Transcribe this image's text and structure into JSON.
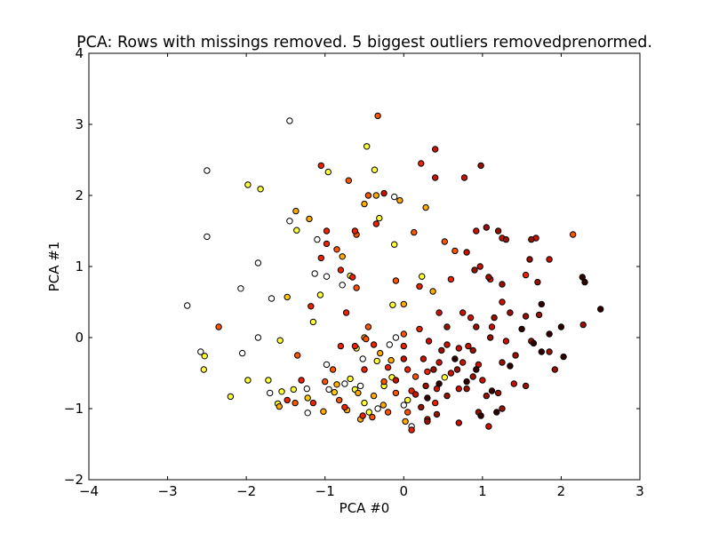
{
  "chart_data": {
    "type": "scatter",
    "title": "PCA: Rows with missings removed. 5 biggest outliers removedprenormed.",
    "xlabel": "PCA #0",
    "ylabel": "PCA #1",
    "xlim": [
      -4,
      3
    ],
    "ylim": [
      -2,
      4
    ],
    "xticks": [
      -4,
      -3,
      -2,
      -1,
      0,
      1,
      2,
      3
    ],
    "yticks": [
      -2,
      -1,
      0,
      1,
      2,
      3,
      4
    ],
    "xtick_labels": [
      "−4",
      "−3",
      "−2",
      "−1",
      "0",
      "1",
      "2",
      "3"
    ],
    "ytick_labels": [
      "−2",
      "−1",
      "0",
      "1",
      "2",
      "3",
      "4"
    ],
    "grid": false,
    "marker_edge_color": "#000000",
    "points": [
      {
        "x": -1.45,
        "y": 3.05,
        "c": "#ffffff"
      },
      {
        "x": -2.5,
        "y": 2.35,
        "c": "#ffffff"
      },
      {
        "x": -2.5,
        "y": 1.42,
        "c": "#ffffff"
      },
      {
        "x": -2.75,
        "y": 0.45,
        "c": "#ffffff"
      },
      {
        "x": -2.07,
        "y": 0.69,
        "c": "#ffffff"
      },
      {
        "x": -1.85,
        "y": 1.05,
        "c": "#ffffff"
      },
      {
        "x": -1.68,
        "y": 0.55,
        "c": "#ffffff"
      },
      {
        "x": -1.45,
        "y": 1.64,
        "c": "#ffffff"
      },
      {
        "x": -1.1,
        "y": 1.38,
        "c": "#ffffff"
      },
      {
        "x": -1.13,
        "y": 0.9,
        "c": "#ffffff"
      },
      {
        "x": -0.98,
        "y": 0.86,
        "c": "#ffffff"
      },
      {
        "x": -0.78,
        "y": 0.74,
        "c": "#ffffff"
      },
      {
        "x": -0.12,
        "y": 1.98,
        "c": "#ffffff"
      },
      {
        "x": -1.85,
        "y": 0.0,
        "c": "#ffffff"
      },
      {
        "x": -2.05,
        "y": -0.22,
        "c": "#ffffff"
      },
      {
        "x": -2.58,
        "y": -0.2,
        "c": "#ffffff"
      },
      {
        "x": -1.7,
        "y": -0.78,
        "c": "#ffffff"
      },
      {
        "x": -1.23,
        "y": -0.72,
        "c": "#ffffff"
      },
      {
        "x": -1.22,
        "y": -1.06,
        "c": "#ffffff"
      },
      {
        "x": -0.98,
        "y": -0.38,
        "c": "#ffffff"
      },
      {
        "x": -0.95,
        "y": -0.73,
        "c": "#ffffff"
      },
      {
        "x": -0.75,
        "y": -0.65,
        "c": "#ffffff"
      },
      {
        "x": -0.52,
        "y": -0.3,
        "c": "#ffffff"
      },
      {
        "x": -0.33,
        "y": -1.0,
        "c": "#ffffff"
      },
      {
        "x": -0.18,
        "y": -0.1,
        "c": "#ffffff"
      },
      {
        "x": -0.55,
        "y": -0.68,
        "c": "#ffffff"
      },
      {
        "x": 0.0,
        "y": -0.95,
        "c": "#ffffff"
      },
      {
        "x": -0.1,
        "y": 0.0,
        "c": "#ffffff"
      },
      {
        "x": 0.1,
        "y": -1.25,
        "c": "#ffffff"
      },
      {
        "x": -1.98,
        "y": 2.15,
        "c": "#ffff33"
      },
      {
        "x": -1.82,
        "y": 2.09,
        "c": "#ffff33"
      },
      {
        "x": -0.96,
        "y": 2.33,
        "c": "#ffff33"
      },
      {
        "x": -0.47,
        "y": 2.69,
        "c": "#ffff33"
      },
      {
        "x": -0.37,
        "y": 2.36,
        "c": "#ffff33"
      },
      {
        "x": -0.31,
        "y": 1.68,
        "c": "#ffff33"
      },
      {
        "x": -0.12,
        "y": 1.31,
        "c": "#ffff33"
      },
      {
        "x": -1.36,
        "y": 1.51,
        "c": "#ffff33"
      },
      {
        "x": -0.68,
        "y": 0.87,
        "c": "#ffff33"
      },
      {
        "x": -1.06,
        "y": 0.6,
        "c": "#ffff33"
      },
      {
        "x": -1.15,
        "y": 0.22,
        "c": "#ffff33"
      },
      {
        "x": -0.14,
        "y": 0.46,
        "c": "#ffff33"
      },
      {
        "x": 0.23,
        "y": 0.86,
        "c": "#ffff33"
      },
      {
        "x": -0.6,
        "y": -0.15,
        "c": "#ffff33"
      },
      {
        "x": -1.57,
        "y": -0.04,
        "c": "#ffff33"
      },
      {
        "x": -2.53,
        "y": -0.26,
        "c": "#ffff33"
      },
      {
        "x": -2.54,
        "y": -0.45,
        "c": "#ffff33"
      },
      {
        "x": -2.2,
        "y": -0.83,
        "c": "#ffff33"
      },
      {
        "x": -1.98,
        "y": -0.6,
        "c": "#ffff33"
      },
      {
        "x": -1.72,
        "y": -0.6,
        "c": "#ffff33"
      },
      {
        "x": -1.55,
        "y": -0.76,
        "c": "#ffff33"
      },
      {
        "x": -1.6,
        "y": -0.93,
        "c": "#ffff33"
      },
      {
        "x": -1.4,
        "y": -0.73,
        "c": "#ffff33"
      },
      {
        "x": -0.68,
        "y": -0.58,
        "c": "#ffff33"
      },
      {
        "x": -0.62,
        "y": -0.73,
        "c": "#ffff33"
      },
      {
        "x": -0.5,
        "y": -0.92,
        "c": "#ffff33"
      },
      {
        "x": -0.34,
        "y": -0.33,
        "c": "#ffff33"
      },
      {
        "x": -0.15,
        "y": -0.56,
        "c": "#ffff33"
      },
      {
        "x": -0.25,
        "y": -0.68,
        "c": "#ffff33"
      },
      {
        "x": 0.05,
        "y": -0.88,
        "c": "#ffff33"
      },
      {
        "x": 0.52,
        "y": -0.56,
        "c": "#ffff33"
      },
      {
        "x": -0.44,
        "y": -1.05,
        "c": "#ffff33"
      },
      {
        "x": -1.48,
        "y": 0.57,
        "c": "#ffcc00"
      },
      {
        "x": -0.88,
        "y": -0.77,
        "c": "#ffcc00"
      },
      {
        "x": -1.22,
        "y": -0.85,
        "c": "#ffcc00"
      },
      {
        "x": -1.37,
        "y": 1.78,
        "c": "#ffaa00"
      },
      {
        "x": -1.2,
        "y": 1.67,
        "c": "#ffaa00"
      },
      {
        "x": -0.35,
        "y": 2.0,
        "c": "#ffaa00"
      },
      {
        "x": -0.05,
        "y": 1.93,
        "c": "#ffaa00"
      },
      {
        "x": 0.28,
        "y": 1.83,
        "c": "#ffaa00"
      },
      {
        "x": -0.78,
        "y": 1.14,
        "c": "#ffaa00"
      },
      {
        "x": -0.5,
        "y": 1.88,
        "c": "#ffaa00"
      },
      {
        "x": 0.37,
        "y": 0.65,
        "c": "#ffaa00"
      },
      {
        "x": 0.0,
        "y": 0.47,
        "c": "#ffaa00"
      },
      {
        "x": -0.5,
        "y": 0.0,
        "c": "#ffaa00"
      },
      {
        "x": -0.3,
        "y": -0.22,
        "c": "#ffaa00"
      },
      {
        "x": -0.16,
        "y": -0.32,
        "c": "#ffaa00"
      },
      {
        "x": -0.85,
        "y": -0.66,
        "c": "#ffaa00"
      },
      {
        "x": -0.58,
        "y": -0.78,
        "c": "#ffaa00"
      },
      {
        "x": -0.38,
        "y": -0.82,
        "c": "#ffaa00"
      },
      {
        "x": -1.02,
        "y": -1.04,
        "c": "#ffaa00"
      },
      {
        "x": -0.72,
        "y": -1.02,
        "c": "#ffaa00"
      },
      {
        "x": -0.55,
        "y": -1.15,
        "c": "#ffaa00"
      },
      {
        "x": -0.26,
        "y": -0.95,
        "c": "#ffaa00"
      },
      {
        "x": 0.02,
        "y": -1.18,
        "c": "#ffaa00"
      },
      {
        "x": -1.58,
        "y": -0.97,
        "c": "#ffaa00"
      },
      {
        "x": -0.33,
        "y": 3.12,
        "c": "#ff5500"
      },
      {
        "x": -0.7,
        "y": 2.21,
        "c": "#ff5500"
      },
      {
        "x": -0.45,
        "y": 2.0,
        "c": "#ff5500"
      },
      {
        "x": -0.6,
        "y": 1.45,
        "c": "#ff5500"
      },
      {
        "x": -0.85,
        "y": 1.24,
        "c": "#ff5500"
      },
      {
        "x": -0.6,
        "y": 0.7,
        "c": "#ff5500"
      },
      {
        "x": -0.1,
        "y": 0.8,
        "c": "#ff5500"
      },
      {
        "x": 0.13,
        "y": 1.48,
        "c": "#ff5500"
      },
      {
        "x": 0.52,
        "y": 1.35,
        "c": "#ff5500"
      },
      {
        "x": 0.65,
        "y": 1.22,
        "c": "#ff5500"
      },
      {
        "x": 2.15,
        "y": 1.45,
        "c": "#ff5500"
      },
      {
        "x": -2.35,
        "y": 0.15,
        "c": "#ff5500"
      },
      {
        "x": -1.35,
        "y": -0.25,
        "c": "#ff5500"
      },
      {
        "x": -0.45,
        "y": 0.15,
        "c": "#ff5500"
      },
      {
        "x": -0.48,
        "y": -0.02,
        "c": "#ff5500"
      },
      {
        "x": 0.0,
        "y": 0.05,
        "c": "#ff5500"
      },
      {
        "x": -1.0,
        "y": -0.62,
        "c": "#ff5500"
      },
      {
        "x": -0.9,
        "y": -0.45,
        "c": "#ff5500"
      },
      {
        "x": -0.25,
        "y": -0.62,
        "c": "#ff5500"
      },
      {
        "x": -0.1,
        "y": -0.78,
        "c": "#ff5500"
      },
      {
        "x": 0.15,
        "y": -0.55,
        "c": "#ff5500"
      },
      {
        "x": -1.38,
        "y": -0.92,
        "c": "#ff5500"
      },
      {
        "x": -0.82,
        "y": -0.88,
        "c": "#ff5500"
      },
      {
        "x": -0.4,
        "y": -1.12,
        "c": "#ff5500"
      },
      {
        "x": -0.2,
        "y": -1.05,
        "c": "#ff5500"
      },
      {
        "x": 0.05,
        "y": -1.05,
        "c": "#ff5500"
      },
      {
        "x": -1.05,
        "y": 2.42,
        "c": "#ee2200"
      },
      {
        "x": 0.22,
        "y": 2.45,
        "c": "#ee2200"
      },
      {
        "x": -0.62,
        "y": 1.5,
        "c": "#ee2200"
      },
      {
        "x": -0.98,
        "y": 1.32,
        "c": "#ee2200"
      },
      {
        "x": -0.98,
        "y": 1.5,
        "c": "#ee2200"
      },
      {
        "x": -1.05,
        "y": 1.12,
        "c": "#ee2200"
      },
      {
        "x": -0.8,
        "y": 0.95,
        "c": "#ee2200"
      },
      {
        "x": -0.65,
        "y": 0.85,
        "c": "#ee2200"
      },
      {
        "x": -0.35,
        "y": 1.6,
        "c": "#ee2200"
      },
      {
        "x": 0.6,
        "y": 0.82,
        "c": "#ee2200"
      },
      {
        "x": 1.1,
        "y": 0.82,
        "c": "#ee2200"
      },
      {
        "x": 1.55,
        "y": 0.88,
        "c": "#ee2200"
      },
      {
        "x": 0.2,
        "y": 0.72,
        "c": "#ee2200"
      },
      {
        "x": -1.18,
        "y": 0.44,
        "c": "#ee2200"
      },
      {
        "x": -0.73,
        "y": 0.35,
        "c": "#ee2200"
      },
      {
        "x": -0.8,
        "y": -0.12,
        "c": "#ee2200"
      },
      {
        "x": -0.62,
        "y": -0.12,
        "c": "#ee2200"
      },
      {
        "x": -0.38,
        "y": -0.1,
        "c": "#ee2200"
      },
      {
        "x": 0.0,
        "y": -0.12,
        "c": "#ee2200"
      },
      {
        "x": 0.2,
        "y": 0.12,
        "c": "#ee2200"
      },
      {
        "x": -1.3,
        "y": -0.6,
        "c": "#ee2200"
      },
      {
        "x": -0.5,
        "y": -0.45,
        "c": "#ee2200"
      },
      {
        "x": -0.2,
        "y": -0.42,
        "c": "#ee2200"
      },
      {
        "x": 0.05,
        "y": -0.45,
        "c": "#ee2200"
      },
      {
        "x": 0.3,
        "y": -0.48,
        "c": "#ee2200"
      },
      {
        "x": -1.48,
        "y": -0.88,
        "c": "#ee2200"
      },
      {
        "x": -1.15,
        "y": -0.92,
        "c": "#ee2200"
      },
      {
        "x": -0.75,
        "y": -0.98,
        "c": "#ee2200"
      },
      {
        "x": -0.52,
        "y": -1.1,
        "c": "#ee2200"
      },
      {
        "x": 0.1,
        "y": -1.3,
        "c": "#ee2200"
      },
      {
        "x": 0.4,
        "y": -0.92,
        "c": "#ee2200"
      },
      {
        "x": 0.1,
        "y": -0.75,
        "c": "#ee2200"
      },
      {
        "x": 0.4,
        "y": 2.65,
        "c": "#cc1100"
      },
      {
        "x": 0.4,
        "y": 2.25,
        "c": "#cc1100"
      },
      {
        "x": 0.77,
        "y": 2.25,
        "c": "#cc1100"
      },
      {
        "x": -0.25,
        "y": 2.03,
        "c": "#cc1100"
      },
      {
        "x": 0.92,
        "y": 1.5,
        "c": "#cc1100"
      },
      {
        "x": 1.25,
        "y": 1.4,
        "c": "#cc1100"
      },
      {
        "x": 1.68,
        "y": 1.4,
        "c": "#cc1100"
      },
      {
        "x": 1.85,
        "y": 1.1,
        "c": "#cc1100"
      },
      {
        "x": 0.8,
        "y": 1.2,
        "c": "#cc1100"
      },
      {
        "x": 0.97,
        "y": 1.0,
        "c": "#cc1100"
      },
      {
        "x": 0.45,
        "y": 0.35,
        "c": "#cc1100"
      },
      {
        "x": 0.75,
        "y": 0.35,
        "c": "#cc1100"
      },
      {
        "x": 0.85,
        "y": 0.28,
        "c": "#cc1100"
      },
      {
        "x": 1.25,
        "y": 0.5,
        "c": "#cc1100"
      },
      {
        "x": 1.12,
        "y": 0.15,
        "c": "#cc1100"
      },
      {
        "x": 0.32,
        "y": -0.05,
        "c": "#cc1100"
      },
      {
        "x": 0.55,
        "y": -0.1,
        "c": "#cc1100"
      },
      {
        "x": 0.7,
        "y": -0.15,
        "c": "#cc1100"
      },
      {
        "x": 0.82,
        "y": -0.12,
        "c": "#cc1100"
      },
      {
        "x": 1.3,
        "y": -0.05,
        "c": "#cc1100"
      },
      {
        "x": 0.0,
        "y": -0.3,
        "c": "#cc1100"
      },
      {
        "x": 0.25,
        "y": -0.3,
        "c": "#cc1100"
      },
      {
        "x": 0.45,
        "y": -0.35,
        "c": "#cc1100"
      },
      {
        "x": 0.6,
        "y": -0.5,
        "c": "#cc1100"
      },
      {
        "x": 0.75,
        "y": -0.35,
        "c": "#cc1100"
      },
      {
        "x": 0.95,
        "y": -0.38,
        "c": "#cc1100"
      },
      {
        "x": -0.1,
        "y": -0.6,
        "c": "#cc1100"
      },
      {
        "x": 0.15,
        "y": -0.8,
        "c": "#cc1100"
      },
      {
        "x": 0.42,
        "y": -0.72,
        "c": "#cc1100"
      },
      {
        "x": 0.7,
        "y": -0.72,
        "c": "#cc1100"
      },
      {
        "x": 1.0,
        "y": -0.6,
        "c": "#cc1100"
      },
      {
        "x": 1.4,
        "y": -0.65,
        "c": "#cc1100"
      },
      {
        "x": 0.3,
        "y": -1.15,
        "c": "#cc1100"
      },
      {
        "x": 0.7,
        "y": -1.2,
        "c": "#cc1100"
      },
      {
        "x": 1.08,
        "y": -1.25,
        "c": "#cc1100"
      },
      {
        "x": 0.98,
        "y": 2.42,
        "c": "#991100"
      },
      {
        "x": 1.05,
        "y": 1.55,
        "c": "#991100"
      },
      {
        "x": 1.2,
        "y": 1.5,
        "c": "#991100"
      },
      {
        "x": 1.3,
        "y": 1.38,
        "c": "#991100"
      },
      {
        "x": 1.6,
        "y": 1.1,
        "c": "#991100"
      },
      {
        "x": 1.62,
        "y": 1.38,
        "c": "#991100"
      },
      {
        "x": 0.9,
        "y": 0.95,
        "c": "#991100"
      },
      {
        "x": 1.08,
        "y": 0.85,
        "c": "#991100"
      },
      {
        "x": 1.25,
        "y": 0.75,
        "c": "#991100"
      },
      {
        "x": 1.7,
        "y": 0.78,
        "c": "#991100"
      },
      {
        "x": 1.35,
        "y": 0.35,
        "c": "#991100"
      },
      {
        "x": 1.55,
        "y": 0.3,
        "c": "#991100"
      },
      {
        "x": 1.72,
        "y": 0.32,
        "c": "#991100"
      },
      {
        "x": 2.28,
        "y": 0.18,
        "c": "#991100"
      },
      {
        "x": 1.15,
        "y": 0.28,
        "c": "#991100"
      },
      {
        "x": 0.55,
        "y": 0.15,
        "c": "#991100"
      },
      {
        "x": 0.92,
        "y": 0.15,
        "c": "#991100"
      },
      {
        "x": 0.48,
        "y": -0.18,
        "c": "#991100"
      },
      {
        "x": 0.88,
        "y": -0.18,
        "c": "#991100"
      },
      {
        "x": 1.1,
        "y": 0.0,
        "c": "#991100"
      },
      {
        "x": 1.62,
        "y": -0.05,
        "c": "#991100"
      },
      {
        "x": 0.38,
        "y": -0.45,
        "c": "#991100"
      },
      {
        "x": 0.68,
        "y": -0.45,
        "c": "#991100"
      },
      {
        "x": 0.88,
        "y": -0.55,
        "c": "#991100"
      },
      {
        "x": 1.25,
        "y": -0.35,
        "c": "#991100"
      },
      {
        "x": 1.42,
        "y": -0.25,
        "c": "#991100"
      },
      {
        "x": 1.85,
        "y": -0.2,
        "c": "#991100"
      },
      {
        "x": 0.28,
        "y": -0.68,
        "c": "#991100"
      },
      {
        "x": 0.55,
        "y": -0.82,
        "c": "#991100"
      },
      {
        "x": 0.8,
        "y": -0.72,
        "c": "#991100"
      },
      {
        "x": 1.05,
        "y": -0.82,
        "c": "#991100"
      },
      {
        "x": 1.2,
        "y": -0.78,
        "c": "#991100"
      },
      {
        "x": 1.55,
        "y": -0.68,
        "c": "#991100"
      },
      {
        "x": 1.92,
        "y": -0.45,
        "c": "#991100"
      },
      {
        "x": 0.22,
        "y": -0.98,
        "c": "#991100"
      },
      {
        "x": 0.42,
        "y": -1.08,
        "c": "#991100"
      },
      {
        "x": 0.95,
        "y": -1.05,
        "c": "#991100"
      },
      {
        "x": 1.25,
        "y": -1.0,
        "c": "#991100"
      },
      {
        "x": 0.3,
        "y": -1.18,
        "c": "#991100"
      },
      {
        "x": 1.75,
        "y": 0.47,
        "c": "#330000"
      },
      {
        "x": 2.3,
        "y": 0.78,
        "c": "#330000"
      },
      {
        "x": 2.5,
        "y": 0.4,
        "c": "#330000"
      },
      {
        "x": 2.27,
        "y": 0.85,
        "c": "#330000"
      },
      {
        "x": 2.0,
        "y": 0.15,
        "c": "#330000"
      },
      {
        "x": 2.03,
        "y": -0.27,
        "c": "#330000"
      },
      {
        "x": 1.85,
        "y": 0.05,
        "c": "#330000"
      },
      {
        "x": 1.75,
        "y": -0.2,
        "c": "#330000"
      },
      {
        "x": 1.5,
        "y": 0.12,
        "c": "#330000"
      },
      {
        "x": 1.35,
        "y": -0.4,
        "c": "#330000"
      },
      {
        "x": 1.12,
        "y": -0.75,
        "c": "#330000"
      },
      {
        "x": 1.65,
        "y": -0.08,
        "c": "#330000"
      },
      {
        "x": 0.92,
        "y": -0.45,
        "c": "#330000"
      },
      {
        "x": 0.65,
        "y": -0.3,
        "c": "#330000"
      },
      {
        "x": 0.45,
        "y": -0.65,
        "c": "#330000"
      },
      {
        "x": 0.3,
        "y": -0.85,
        "c": "#330000"
      },
      {
        "x": 1.18,
        "y": -1.05,
        "c": "#330000"
      },
      {
        "x": 0.98,
        "y": -1.1,
        "c": "#330000"
      },
      {
        "x": 0.8,
        "y": -0.62,
        "c": "#330000"
      }
    ]
  }
}
